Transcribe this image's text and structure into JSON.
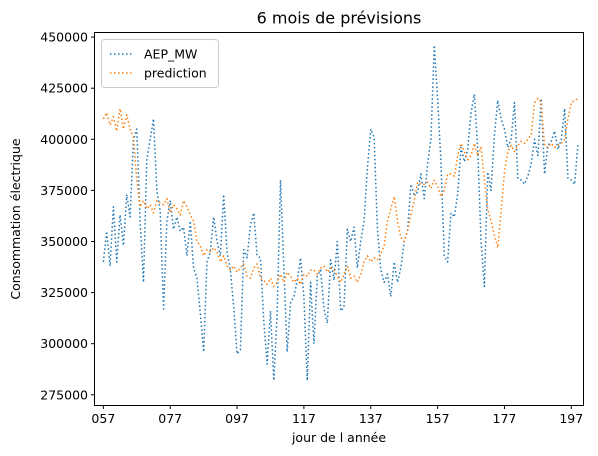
{
  "chart_data": {
    "type": "line",
    "title": "6 mois de prévisions",
    "xlabel": "jour de l année",
    "ylabel": "Consommation électrique",
    "xlim": [
      54.5,
      200.5
    ],
    "ylim": [
      270000,
      452000
    ],
    "x_ticks": [
      57,
      77,
      97,
      117,
      137,
      157,
      177,
      197
    ],
    "x_tick_labels": [
      "057",
      "077",
      "097",
      "117",
      "137",
      "157",
      "177",
      "197"
    ],
    "y_ticks": [
      275000,
      300000,
      325000,
      350000,
      375000,
      400000,
      425000,
      450000
    ],
    "y_tick_labels": [
      "275000",
      "300000",
      "325000",
      "350000",
      "375000",
      "400000",
      "425000",
      "450000"
    ],
    "grid": false,
    "legend_position": "top-left",
    "series": [
      {
        "name": "AEP_MW",
        "color": "#1f77b4",
        "line_style": "dotted",
        "x": [
          57,
          58,
          59,
          60,
          61,
          62,
          63,
          64,
          65,
          66,
          67,
          68,
          69,
          70,
          71,
          72,
          73,
          74,
          75,
          76,
          77,
          78,
          79,
          80,
          81,
          82,
          83,
          84,
          85,
          86,
          87,
          88,
          89,
          90,
          91,
          92,
          93,
          94,
          95,
          96,
          97,
          98,
          99,
          100,
          101,
          102,
          103,
          104,
          105,
          106,
          107,
          108,
          109,
          110,
          111,
          112,
          113,
          114,
          115,
          116,
          117,
          118,
          119,
          120,
          121,
          122,
          123,
          124,
          125,
          126,
          127,
          128,
          129,
          130,
          131,
          132,
          133,
          134,
          135,
          136,
          137,
          138,
          139,
          140,
          141,
          142,
          143,
          144,
          145,
          146,
          147,
          148,
          149,
          150,
          151,
          152,
          153,
          154,
          155,
          156,
          157,
          158,
          159,
          160,
          161,
          162,
          163,
          164,
          165,
          166,
          167,
          168,
          169,
          170,
          171,
          172,
          173,
          174,
          175,
          176,
          177,
          178,
          179,
          180,
          181,
          182,
          183,
          184,
          185,
          186,
          187,
          188,
          189,
          190,
          191,
          192,
          193,
          194,
          195,
          196,
          197,
          198,
          199
        ],
        "y": [
          340000,
          355000,
          338000,
          367000,
          340000,
          363000,
          348000,
          373000,
          362000,
          400000,
          405000,
          360000,
          330000,
          390000,
          400000,
          410000,
          375000,
          365000,
          317000,
          360000,
          370000,
          356000,
          362000,
          355000,
          357000,
          343000,
          360000,
          337000,
          332000,
          315000,
          296000,
          340000,
          345000,
          362000,
          350000,
          343000,
          373000,
          345000,
          336000,
          318000,
          295000,
          297000,
          346000,
          342000,
          358000,
          364000,
          343000,
          342000,
          311000,
          290000,
          316000,
          282000,
          315000,
          380000,
          337000,
          296000,
          320000,
          323000,
          331000,
          342000,
          323000,
          282000,
          330000,
          300000,
          333000,
          336000,
          317000,
          310000,
          341000,
          331000,
          350000,
          316000,
          318000,
          356000,
          350000,
          357000,
          337000,
          350000,
          360000,
          386000,
          405000,
          401000,
          356000,
          336000,
          330000,
          334000,
          323000,
          340000,
          330000,
          337000,
          350000,
          355000,
          378000,
          373000,
          374000,
          383000,
          371000,
          388000,
          400000,
          446000,
          420000,
          389000,
          343000,
          340000,
          364000,
          362000,
          373000,
          396000,
          389000,
          395000,
          413000,
          422000,
          395000,
          350000,
          328000,
          384000,
          375000,
          402000,
          419000,
          410000,
          405000,
          396000,
          400000,
          418000,
          381000,
          380000,
          378000,
          382000,
          388000,
          400000,
          392000,
          420000,
          383000,
          397000,
          399000,
          404000,
          395000,
          400000,
          415000,
          381000,
          380000,
          378000,
          398000
        ]
      },
      {
        "name": "prediction",
        "color": "#ff7f0e",
        "line_style": "dotted",
        "x": [
          57,
          58,
          59,
          60,
          61,
          62,
          63,
          64,
          65,
          66,
          67,
          68,
          69,
          70,
          71,
          72,
          73,
          74,
          75,
          76,
          77,
          78,
          79,
          80,
          81,
          82,
          83,
          84,
          85,
          86,
          87,
          88,
          89,
          90,
          91,
          92,
          93,
          94,
          95,
          96,
          97,
          98,
          99,
          100,
          101,
          102,
          103,
          104,
          105,
          106,
          107,
          108,
          109,
          110,
          111,
          112,
          113,
          114,
          115,
          116,
          117,
          118,
          119,
          120,
          121,
          122,
          123,
          124,
          125,
          126,
          127,
          128,
          129,
          130,
          131,
          132,
          133,
          134,
          135,
          136,
          137,
          138,
          139,
          140,
          141,
          142,
          143,
          144,
          145,
          146,
          147,
          148,
          149,
          150,
          151,
          152,
          153,
          154,
          155,
          156,
          157,
          158,
          159,
          160,
          161,
          162,
          163,
          164,
          165,
          166,
          167,
          168,
          169,
          170,
          171,
          172,
          173,
          174,
          175,
          176,
          177,
          178,
          179,
          180,
          181,
          182,
          183,
          184,
          185,
          186,
          187,
          188,
          189,
          190,
          191,
          192,
          193,
          194,
          195,
          196,
          197,
          198,
          199
        ],
        "y": [
          410000,
          413000,
          407000,
          411000,
          404000,
          415000,
          405000,
          412000,
          405000,
          401000,
          380000,
          367000,
          370000,
          366000,
          368000,
          364000,
          370000,
          369000,
          368000,
          371000,
          364000,
          368000,
          366000,
          363000,
          370000,
          367000,
          363000,
          360000,
          350000,
          348000,
          343000,
          346000,
          345000,
          347000,
          345000,
          340000,
          343000,
          338000,
          336000,
          338000,
          335000,
          337000,
          339000,
          333000,
          332000,
          337000,
          339000,
          332000,
          331000,
          329000,
          332000,
          328000,
          330000,
          334000,
          330000,
          335000,
          333000,
          330000,
          332000,
          329000,
          334000,
          333000,
          336000,
          336000,
          334000,
          337000,
          338000,
          335000,
          337000,
          336000,
          333000,
          330000,
          334000,
          338000,
          332000,
          333000,
          330000,
          334000,
          340000,
          343000,
          340000,
          342000,
          341000,
          344000,
          348000,
          360000,
          366000,
          372000,
          360000,
          352000,
          350000,
          355000,
          363000,
          370000,
          379000,
          378000,
          378000,
          379000,
          376000,
          380000,
          377000,
          372000,
          375000,
          383000,
          383000,
          382000,
          392000,
          398000,
          394000,
          390000,
          392000,
          398000,
          392000,
          396000,
          380000,
          366000,
          360000,
          353000,
          347000,
          365000,
          384000,
          394000,
          397000,
          394000,
          397000,
          399000,
          398000,
          400000,
          402000,
          418000,
          420000,
          418000,
          397000,
          396000,
          398000,
          396000,
          397000,
          398000,
          400000,
          410000,
          418000,
          419000,
          420000
        ]
      }
    ]
  }
}
